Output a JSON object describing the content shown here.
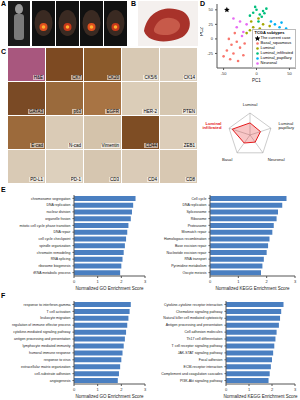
{
  "panel_labels": [
    "A",
    "B",
    "C",
    "D",
    "E",
    "F"
  ],
  "ihc_labels": [
    [
      "H&E",
      "CK7",
      "CK20",
      "CK5/6",
      "CK14"
    ],
    [
      "GATA3",
      "p63",
      "EGFR",
      "HER-2",
      "PTEN"
    ],
    [
      "E-cad",
      "N-cad",
      "Vimentin",
      "CD44",
      "ZEB1"
    ],
    [
      "PD-L1",
      "PD-1",
      "CD3",
      "CD4",
      "CD8"
    ]
  ],
  "chart_data": [
    {
      "type": "scatter",
      "x_label": "PC1",
      "y_label": "PC2",
      "legend_title": "TCGA subtypes",
      "legend": "lower right",
      "xlim": [
        -60,
        60
      ],
      "ylim": [
        -50,
        60
      ],
      "xticks": [
        -50,
        0,
        50
      ],
      "yticks": [
        -25,
        0,
        25,
        50
      ],
      "series": [
        {
          "name": "The current case",
          "color": "#000000",
          "marker": "star",
          "x": [
            -45
          ],
          "values": [
            50
          ]
        },
        {
          "name": "Basal_squamous",
          "color": "#f8766d",
          "marker": "circle",
          "x": [
            -50,
            -45,
            -40,
            -38,
            -35,
            -30,
            -28,
            -25,
            -20,
            -18,
            -42,
            -33
          ],
          "values": [
            -30,
            -20,
            -35,
            -10,
            -25,
            -5,
            -38,
            -15,
            -28,
            -8,
            0,
            10
          ]
        },
        {
          "name": "Luminal",
          "color": "#a3a500",
          "marker": "circle",
          "x": [
            -15,
            -10,
            -5,
            0,
            5,
            10,
            15,
            20,
            -8,
            3
          ],
          "values": [
            10,
            15,
            20,
            12,
            18,
            25,
            14,
            22,
            30,
            35
          ]
        },
        {
          "name": "Luminal_infiltrated",
          "color": "#00bf7d",
          "marker": "circle",
          "x": [
            -10,
            -5,
            0,
            5,
            10,
            -2,
            8,
            12,
            15,
            3
          ],
          "values": [
            40,
            45,
            50,
            42,
            48,
            55,
            38,
            44,
            52,
            30
          ]
        },
        {
          "name": "Luminal_papillary",
          "color": "#00b0f6",
          "marker": "circle",
          "x": [
            20,
            25,
            30,
            35,
            40,
            45,
            28,
            38,
            50,
            22
          ],
          "values": [
            10,
            15,
            8,
            20,
            12,
            18,
            25,
            28,
            15,
            30
          ]
        },
        {
          "name": "Neuronal",
          "color": "#e76bf3",
          "marker": "circle",
          "x": [
            -30,
            -25,
            -20,
            -15,
            -35,
            -22
          ],
          "values": [
            20,
            30,
            12,
            25,
            35,
            5
          ]
        }
      ]
    },
    {
      "type": "radar",
      "categories": [
        "Luminal",
        "Luminal papillary",
        "Neuronal",
        "Basal",
        "Luminal infiltrated"
      ],
      "values": [
        0.55,
        0.5,
        0.4,
        0.45,
        0.85
      ],
      "color": "#e41a1c",
      "ylim": [
        0,
        1
      ],
      "tick_labels": false
    },
    {
      "type": "bar",
      "orientation": "horizontal",
      "x_label": "Normalized GO Enrichment Score",
      "categories": [
        "chromosome segregation",
        "DNA replication",
        "nuclear division",
        "organelle fission",
        "mitotic cell cycle phase transition",
        "DNA repair",
        "cell cycle checkpoint",
        "spindle organization",
        "chromatin remodeling",
        "RNA splicing",
        "ribosome biogenesis",
        "tRNA metabolic process"
      ],
      "values": [
        2.6,
        2.5,
        2.45,
        2.4,
        2.3,
        2.25,
        2.2,
        2.15,
        2.1,
        2.05,
        2.0,
        1.95
      ],
      "color": "#4a7fc1",
      "xlim": [
        0,
        3
      ],
      "xticks": [
        0,
        1,
        2,
        3
      ]
    },
    {
      "type": "bar",
      "orientation": "horizontal",
      "x_label": "Normalized KEGG Enrichment Score",
      "categories": [
        "Cell cycle",
        "DNA replication",
        "Spliceosome",
        "Ribosome",
        "Proteasome",
        "Mismatch repair",
        "Homologous recombination",
        "Base excision repair",
        "Nucleotide excision repair",
        "RNA transport",
        "Pyrimidine metabolism",
        "Oocyte meiosis"
      ],
      "values": [
        2.7,
        2.55,
        2.4,
        2.35,
        2.25,
        2.2,
        2.1,
        2.05,
        2.0,
        1.9,
        1.85,
        1.8
      ],
      "color": "#4a7fc1",
      "xlim": [
        0,
        3
      ],
      "xticks": [
        0,
        1,
        2,
        3
      ]
    },
    {
      "type": "bar",
      "orientation": "horizontal",
      "x_label": "Normalized GO Enrichment Score",
      "categories": [
        "response to interferon-gamma",
        "T cell activation",
        "leukocyte migration",
        "regulation of immune effector process",
        "cytokine-mediated signaling pathway",
        "antigen processing and presentation",
        "lymphocyte mediated immunity",
        "humoral immune response",
        "response to virus",
        "extracellular matrix organization",
        "cell-substrate adhesion",
        "angiogenesis"
      ],
      "values": [
        2.4,
        2.35,
        2.3,
        2.25,
        2.2,
        2.15,
        2.1,
        2.05,
        2.0,
        1.95,
        1.9,
        1.85
      ],
      "color": "#4a7fc1",
      "xlim": [
        0,
        3
      ],
      "xticks": [
        0,
        1,
        2,
        3
      ]
    },
    {
      "type": "bar",
      "orientation": "horizontal",
      "x_label": "Normalized KEGG Enrichment Score",
      "categories": [
        "Cytokine-cytokine receptor interaction",
        "Chemokine signaling pathway",
        "Natural killer cell mediated cytotoxicity",
        "Antigen processing and presentation",
        "Cell adhesion molecules",
        "Th17 cell differentiation",
        "T cell receptor signaling pathway",
        "JAK-STAT signaling pathway",
        "Focal adhesion",
        "ECM-receptor interaction",
        "Complement and coagulation cascades",
        "PI3K-Akt signaling pathway"
      ],
      "values": [
        2.5,
        2.4,
        2.35,
        2.3,
        2.2,
        2.15,
        2.1,
        2.05,
        2.0,
        1.95,
        1.9,
        1.85
      ],
      "color": "#4a7fc1",
      "xlim": [
        0,
        3
      ],
      "xticks": [
        0,
        1,
        2,
        3
      ]
    }
  ]
}
